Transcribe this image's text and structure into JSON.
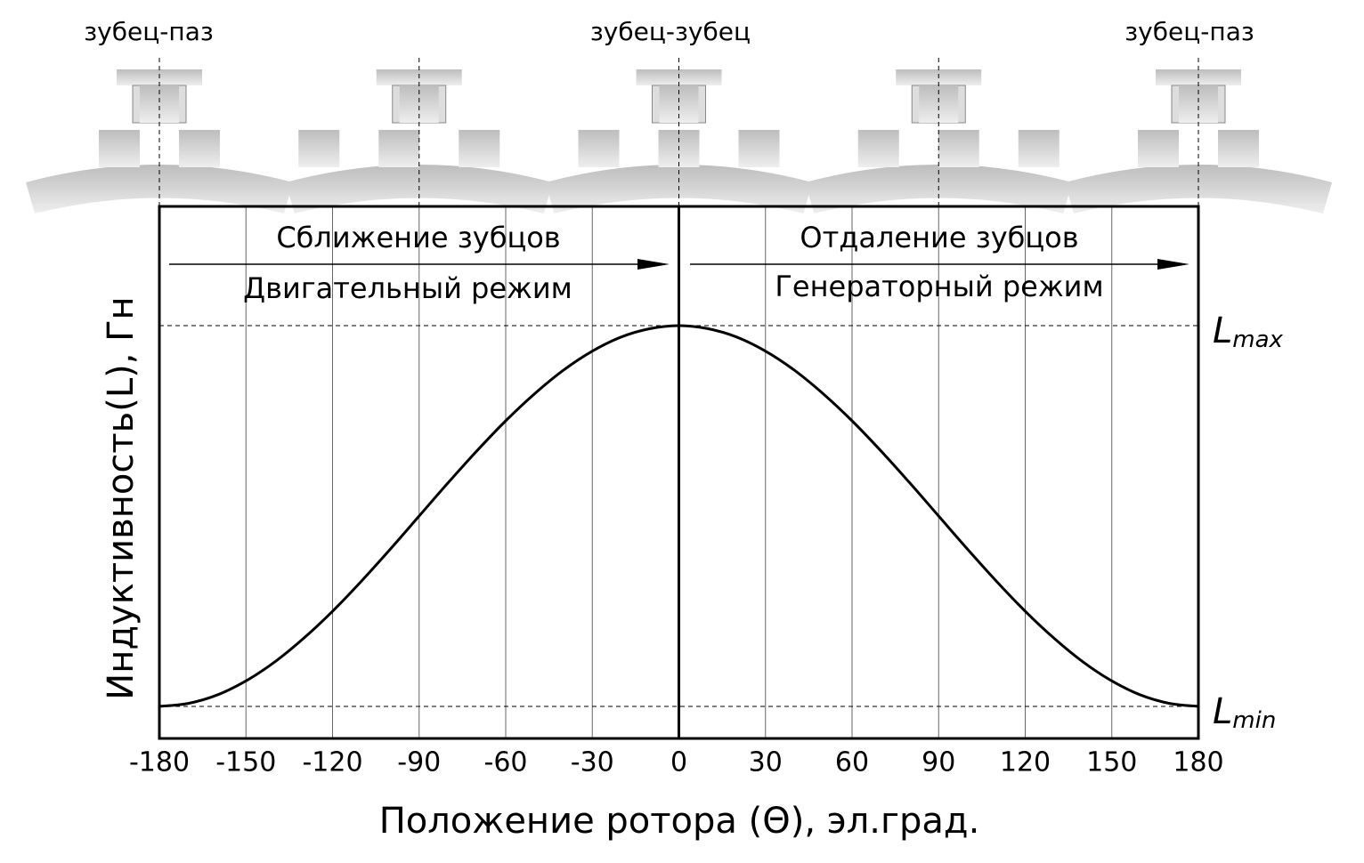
{
  "chart_data": {
    "type": "line",
    "x_label": "Положение ротора (Θ), эл.град.",
    "y_label": "Индуктивность(L), Гн",
    "position_labels": [
      "зубец-паз",
      "зубец-зубец",
      "зубец-паз"
    ],
    "annotations": [
      "Сближение зубцов",
      "Двигательный режим",
      "Отдаление зубцов",
      "Генераторный режим"
    ],
    "x": [
      -180,
      -170,
      -160,
      -150,
      -140,
      -130,
      -120,
      -110,
      -100,
      -90,
      -80,
      -70,
      -60,
      -50,
      -40,
      -30,
      -20,
      -10,
      0,
      10,
      20,
      30,
      40,
      50,
      60,
      70,
      80,
      90,
      100,
      110,
      120,
      130,
      140,
      150,
      160,
      170,
      180
    ],
    "series": [
      {
        "color": "#000000",
        "values": [
          0,
          0.008,
          0.03,
          0.067,
          0.117,
          0.179,
          0.25,
          0.329,
          0.413,
          0.5,
          0.587,
          0.671,
          0.75,
          0.821,
          0.883,
          0.933,
          0.97,
          0.992,
          1,
          0.992,
          0.97,
          0.933,
          0.883,
          0.821,
          0.75,
          0.671,
          0.587,
          0.5,
          0.413,
          0.329,
          0.25,
          0.179,
          0.117,
          0.067,
          0.03,
          0.008,
          0
        ]
      }
    ],
    "xlim": [
      -180,
      180
    ],
    "xticks": [
      -180,
      -150,
      -120,
      -90,
      -60,
      -30,
      0,
      30,
      60,
      90,
      120,
      150,
      180
    ],
    "ylim": [
      -0.084,
      1.313
    ],
    "yticks": [
      {
        "value": 0,
        "label": "Lmin"
      },
      {
        "value": 1,
        "label": "Lmax"
      }
    ],
    "grid": true
  }
}
